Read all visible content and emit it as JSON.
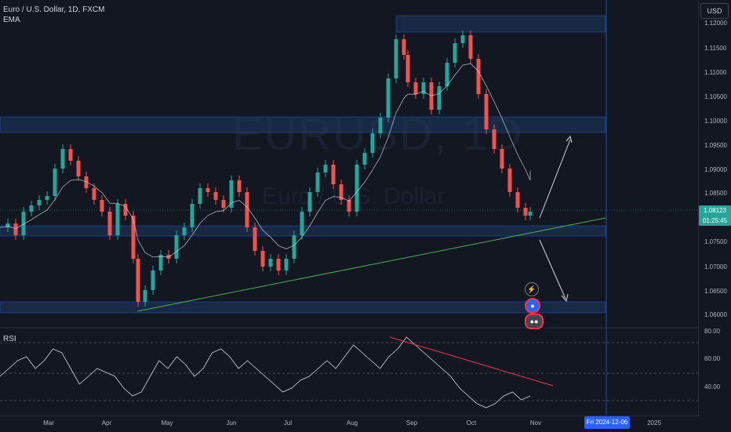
{
  "legend": {
    "symbol": "Euro / U.S. Dollar, 1D, FXCM",
    "indicator": "EMA"
  },
  "watermark": {
    "symbol": "EURUSD, 1D",
    "name": "Euro / U.S. Dollar"
  },
  "rsi_label": "RSI",
  "currency_button": "USD",
  "price_ticks": [
    "1.12000",
    "1.11500",
    "1.11000",
    "1.10500",
    "1.10000",
    "1.09500",
    "1.09000",
    "1.08500",
    "1.07500",
    "1.07000",
    "1.06500",
    "1.06000"
  ],
  "rsi_ticks": [
    "80.00",
    "60.00",
    "40.00"
  ],
  "current_price": {
    "value": "1.08123",
    "countdown": "01:25:45"
  },
  "time_ticks": [
    "Mar",
    "Apr",
    "May",
    "Jun",
    "Jul",
    "Aug",
    "Sep",
    "Oct",
    "Nov",
    "2025"
  ],
  "crosshair_date": "Fri 2024-12-06",
  "colors": {
    "up": "#26a69a",
    "down": "#ef5350",
    "zone": "#1e3a5f",
    "trendline": "#4caf50",
    "rsi_trendline": "#f23645",
    "background": "#131722"
  },
  "event_icons": [
    "lightning-icon",
    "flag-icon",
    "flag-group-icon"
  ]
}
